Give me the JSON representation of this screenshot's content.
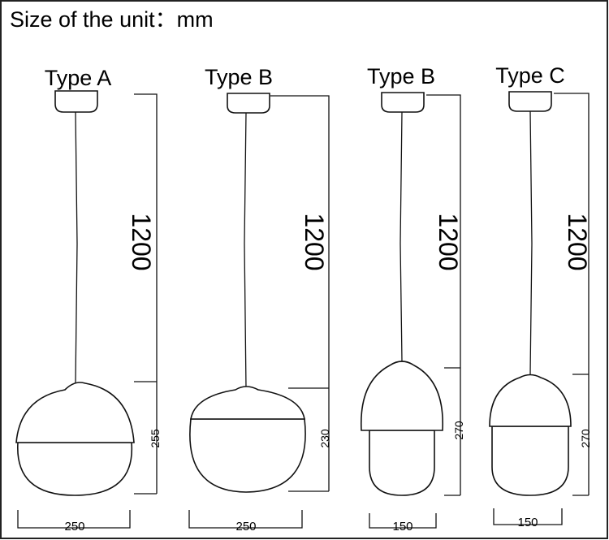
{
  "header": {
    "title": "Size of the unit：mm"
  },
  "lamps": [
    {
      "label": "Type A",
      "cord_length": 1200,
      "height": 255,
      "width": 250
    },
    {
      "label": "Type B",
      "cord_length": 1200,
      "height": 230,
      "width": 250
    },
    {
      "label": "Type B",
      "cord_length": 1200,
      "height": 270,
      "width": 150
    },
    {
      "label": "Type C",
      "cord_length": 1200,
      "height": 270,
      "width": 150
    }
  ]
}
